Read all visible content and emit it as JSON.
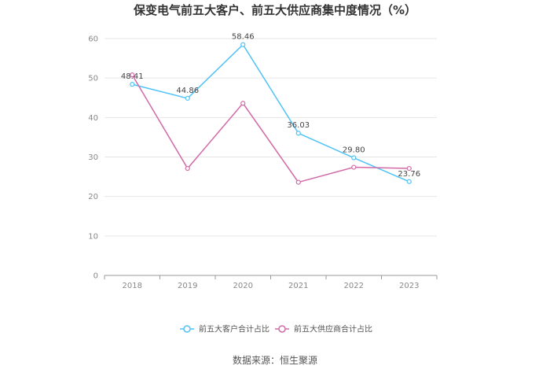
{
  "title": "保变电气前五大客户、前五大供应商集中度情况（%）",
  "source": "数据来源：恒生聚源",
  "chart_data": {
    "type": "line",
    "title": "保变电气前五大客户、前五大供应商集中度情况（%）",
    "x": [
      "2018",
      "2019",
      "2020",
      "2021",
      "2022",
      "2023"
    ],
    "ylim": [
      0,
      60
    ],
    "yticks": [
      0,
      10,
      20,
      30,
      40,
      50,
      60
    ],
    "grid": true,
    "legend_position": "bottom-center",
    "series": [
      {
        "name": "前五大客户合计占比",
        "color": "#4fc3f7",
        "values": [
          48.41,
          44.86,
          58.46,
          36.03,
          29.8,
          23.76
        ],
        "labels": [
          "48.41",
          "44.86",
          "58.46",
          "36.03",
          "29.80",
          "23.76"
        ]
      },
      {
        "name": "前五大供应商合计占比",
        "color": "#d16ba8",
        "values": [
          50.8,
          27.1,
          43.6,
          23.6,
          27.4,
          27.1
        ]
      }
    ]
  }
}
